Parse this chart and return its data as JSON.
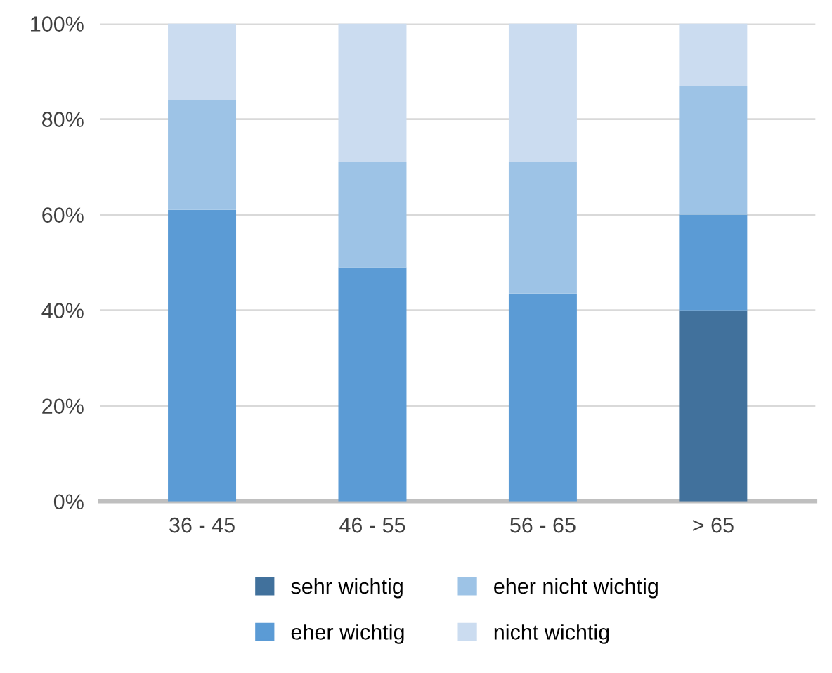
{
  "chart_data": {
    "type": "bar",
    "stacked": true,
    "categories": [
      "36 - 45",
      "46 - 55",
      "56 - 65",
      "> 65"
    ],
    "series": [
      {
        "name": "sehr wichtig",
        "color": "#41719c",
        "values": [
          0,
          0,
          0,
          40
        ]
      },
      {
        "name": "eher wichtig",
        "color": "#5b9bd5",
        "values": [
          61,
          49,
          43.5,
          20
        ]
      },
      {
        "name": "eher nicht wichtig",
        "color": "#9dc3e6",
        "values": [
          23,
          22,
          27.5,
          27
        ]
      },
      {
        "name": "nicht wichtig",
        "color": "#cbdcf0",
        "values": [
          16,
          29,
          29,
          13
        ]
      }
    ],
    "ylim": [
      0,
      100
    ],
    "yticks": [
      {
        "value": 0,
        "label": "0%"
      },
      {
        "value": 20,
        "label": "20%"
      },
      {
        "value": 40,
        "label": "40%"
      },
      {
        "value": 60,
        "label": "60%"
      },
      {
        "value": 80,
        "label": "80%"
      },
      {
        "value": 100,
        "label": "100%"
      }
    ],
    "grid": "y",
    "legend": "bottom"
  }
}
